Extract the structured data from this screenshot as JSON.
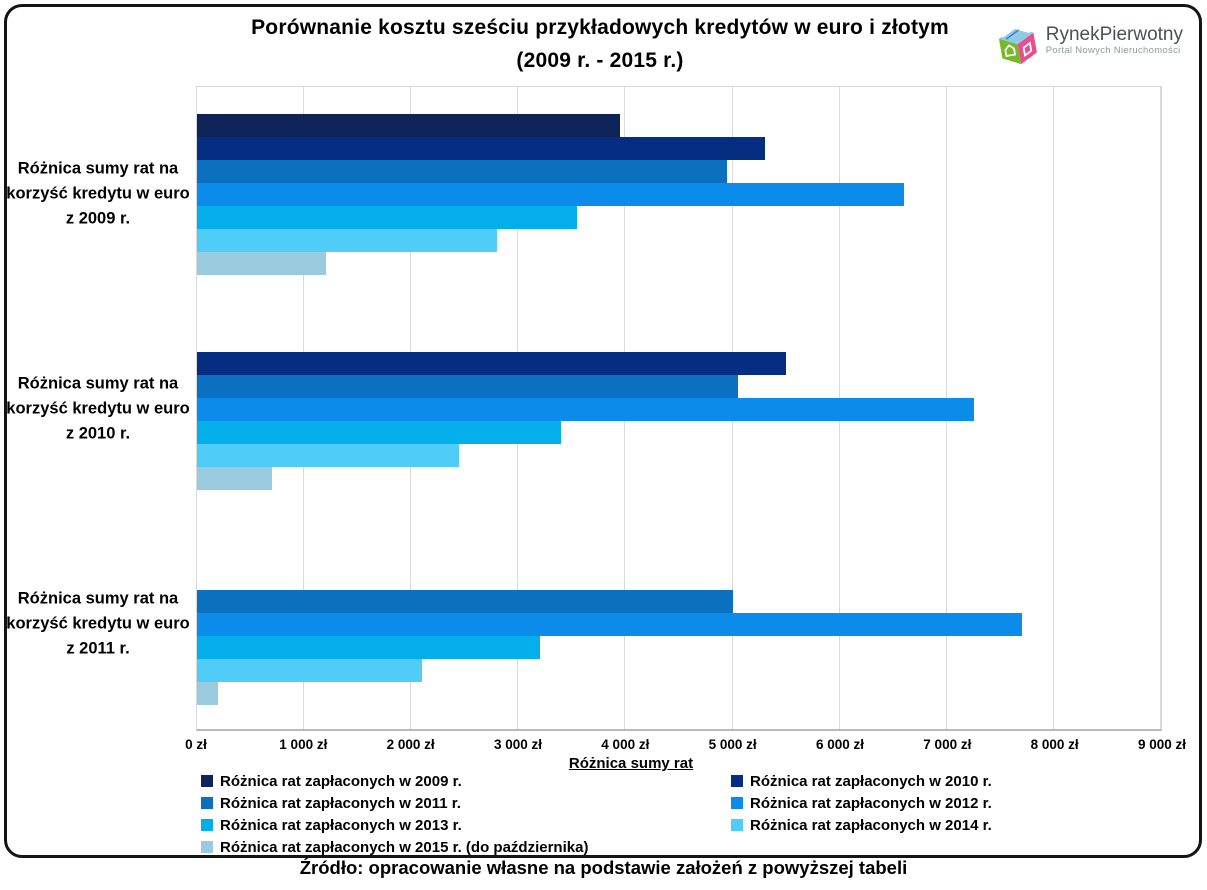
{
  "title": {
    "line1": "Porównanie kosztu sześciu przykładowych kredytów w euro i złotym",
    "line2": "(2009 r. - 2015 r.)"
  },
  "logo": {
    "name": "RynekPierwotny",
    "tagline": "Portal Nowych Nieruchomości"
  },
  "source": "Źródło: opracowanie własne na podstawie założeń z powyższej tabeli",
  "chart_data": {
    "type": "bar",
    "orientation": "horizontal",
    "title": "Porównanie kosztu sześciu przykładowych kredytów w euro i złotym (2009 r. - 2015 r.)",
    "xlabel": "Różnica sumy rat",
    "xlim": [
      0,
      9000
    ],
    "x_ticks": [
      "0 zł",
      "1 000 zł",
      "2 000 zł",
      "3 000 zł",
      "4 000 zł",
      "5 000 zł",
      "6 000 zł",
      "7 000 zł",
      "8 000 zł",
      "9 000 zł"
    ],
    "grid": true,
    "legend_position": "bottom",
    "categories": [
      "Różnica sumy rat na korzyść kredytu w euro z 2009 r.",
      "Różnica sumy rat na korzyść kredytu w euro z 2010 r.",
      "Różnica sumy rat na korzyść kredytu w euro z 2011 r."
    ],
    "series": [
      {
        "name": "Różnica rat zapłaconych w 2009 r.",
        "color": "#0e2357",
        "values": [
          3950,
          null,
          null
        ]
      },
      {
        "name": "Różnica rat zapłaconych w 2010 r.",
        "color": "#052e82",
        "values": [
          5300,
          5500,
          null
        ]
      },
      {
        "name": "Różnica rat zapłaconych w 2011 r.",
        "color": "#0a70bf",
        "values": [
          4950,
          5050,
          5000
        ]
      },
      {
        "name": "Różnica rat zapłaconych w 2012 r.",
        "color": "#0b8ceb",
        "values": [
          6600,
          7250,
          7700
        ]
      },
      {
        "name": "Różnica rat zapłaconych w 2013 r.",
        "color": "#03aeeb",
        "values": [
          3550,
          3400,
          3200
        ]
      },
      {
        "name": "Różnica rat zapłaconych w 2014 r.",
        "color": "#4fcdf8",
        "values": [
          2800,
          2450,
          2100
        ]
      },
      {
        "name": "Różnica rat zapłaconych w 2015 r. (do października)",
        "color": "#9acade",
        "values": [
          1200,
          700,
          200
        ]
      }
    ]
  }
}
